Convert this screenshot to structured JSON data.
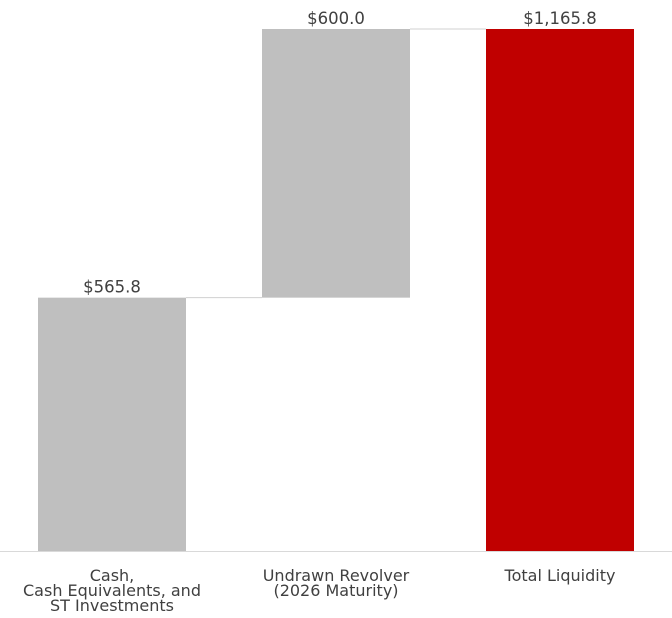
{
  "chart_data": {
    "type": "waterfall",
    "title": "",
    "xlabel": "",
    "ylabel": "",
    "ylim": [
      0,
      1165.8
    ],
    "grid": false,
    "legend": "none",
    "categories": [
      "Cash,\nCash Equivalents, and\nST Investments",
      "Undrawn Revolver\n(2026 Maturity)",
      "Total Liquidity"
    ],
    "values": [
      565.8,
      600.0,
      1165.8
    ],
    "bars": [
      {
        "start": 0,
        "end": 565.8,
        "kind": "increase"
      },
      {
        "start": 565.8,
        "end": 1165.8,
        "kind": "increase"
      },
      {
        "start": 0,
        "end": 1165.8,
        "kind": "total"
      }
    ],
    "data_labels": [
      "$565.8",
      "$600.0",
      "$1,165.8"
    ],
    "connectors": true,
    "colors": {
      "increase": "#bfbfbf",
      "total": "#c00000",
      "connector": "#d0d0d0",
      "axis": "#d9d9d9",
      "text": "#404040"
    }
  }
}
